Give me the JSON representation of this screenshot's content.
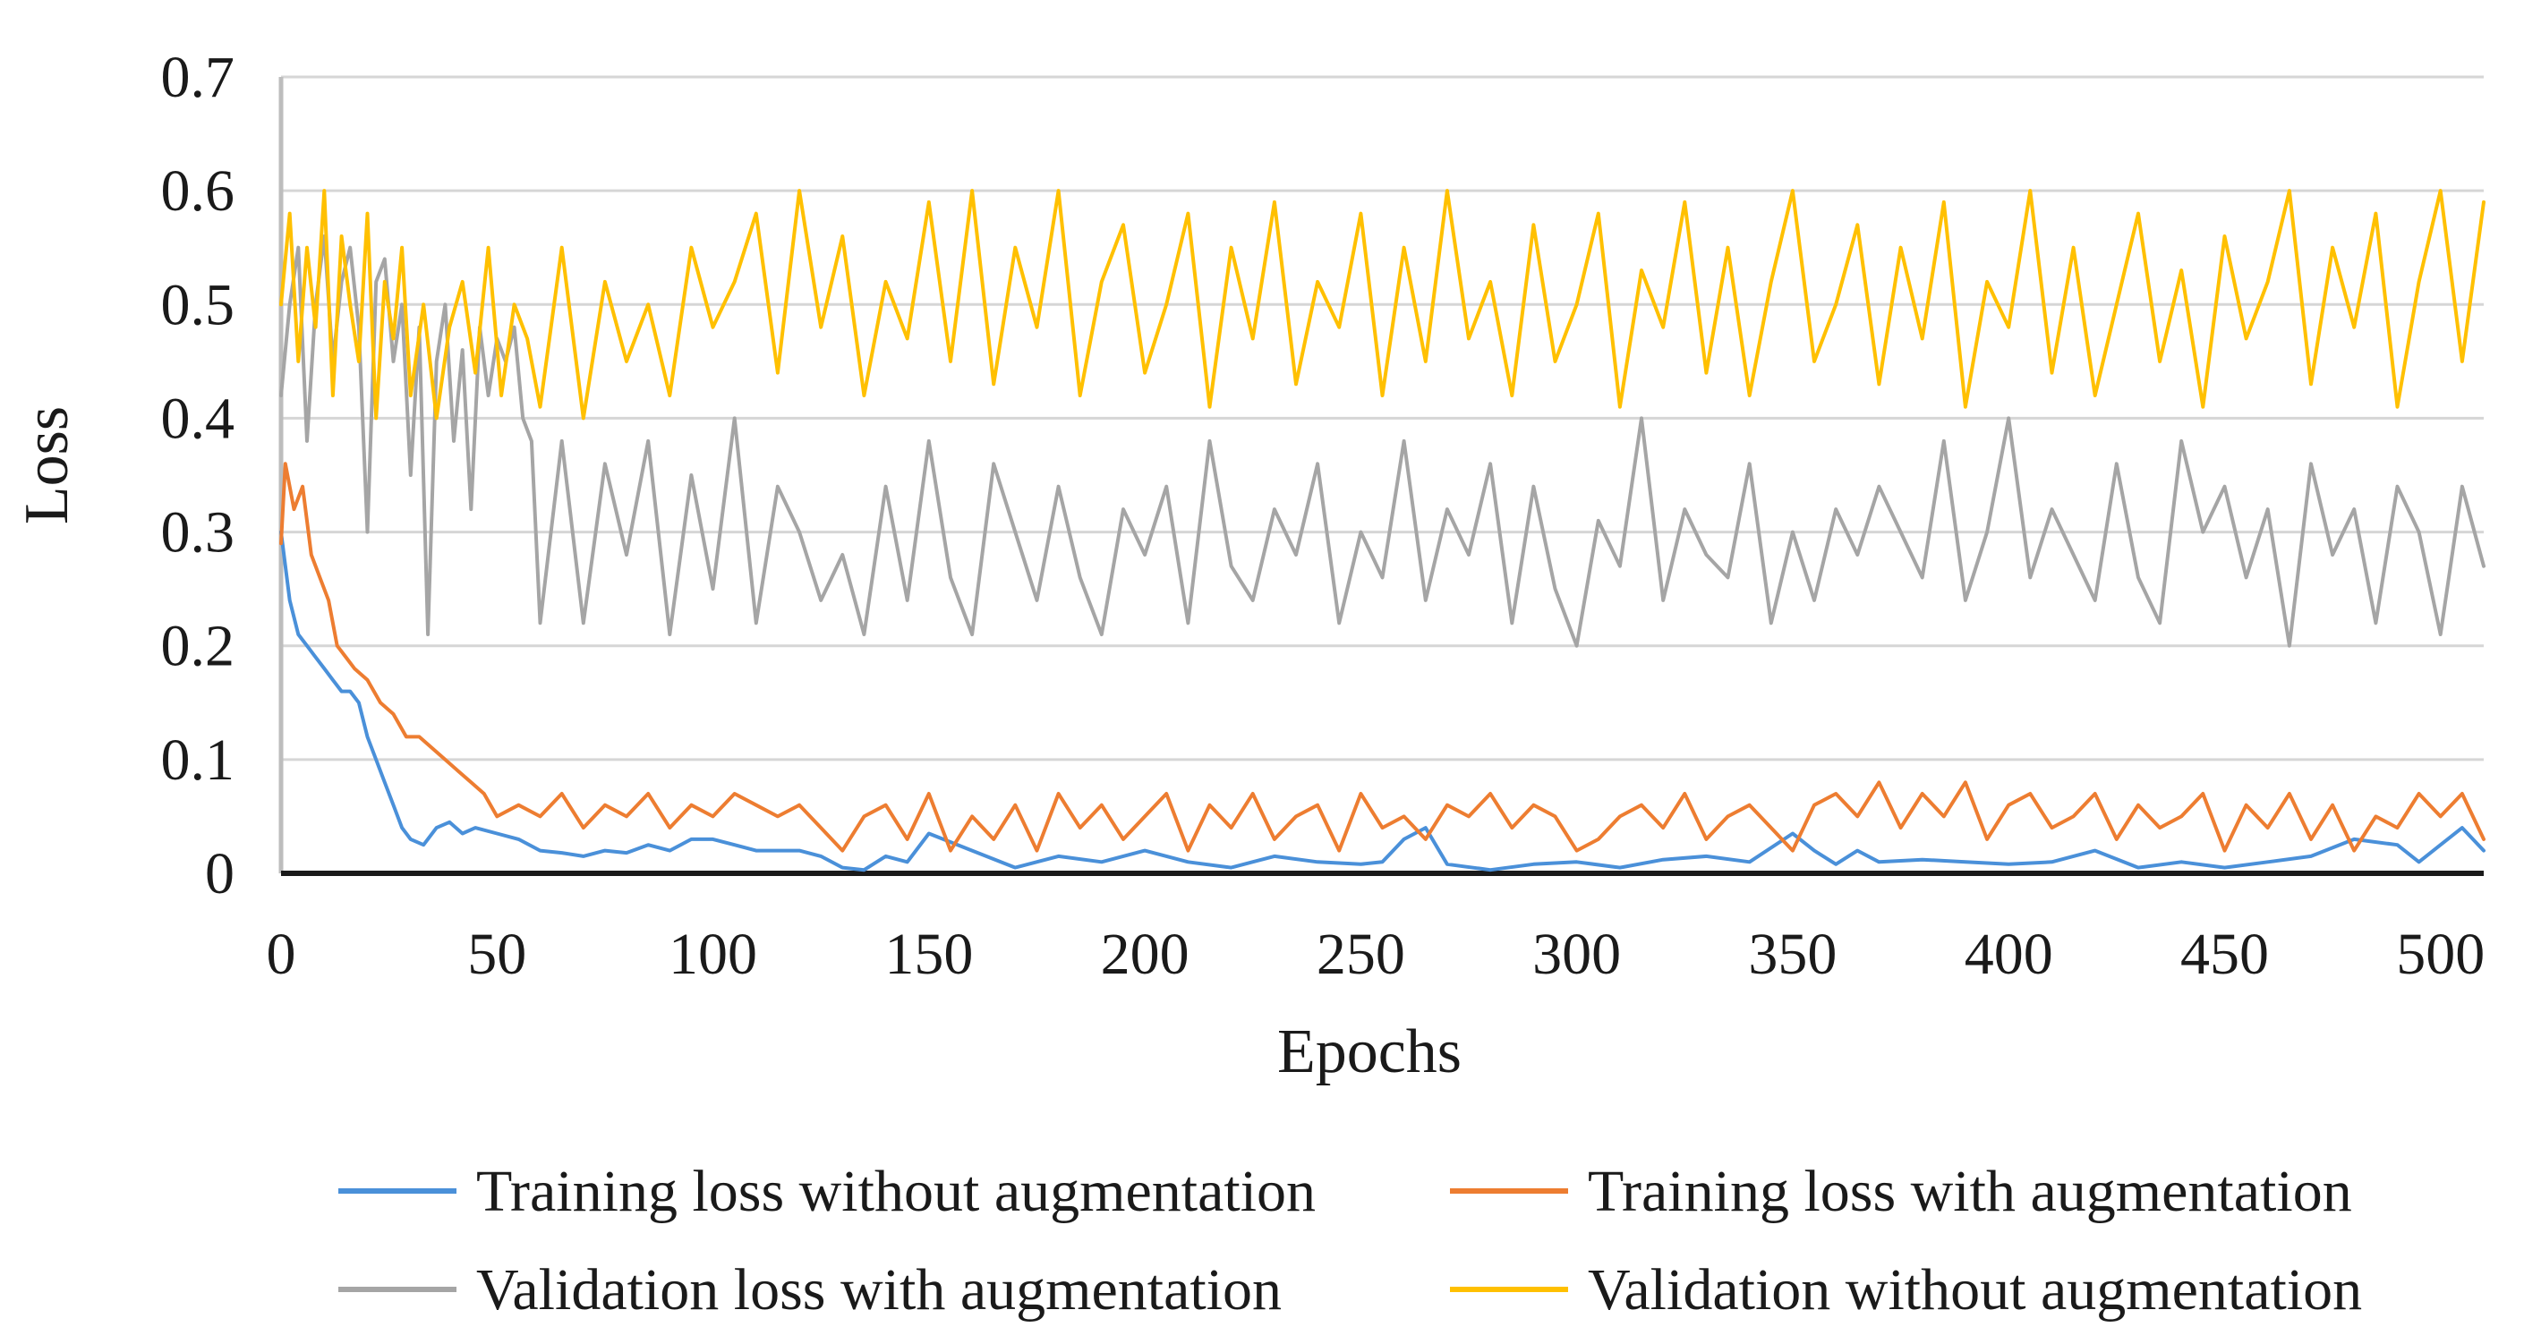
{
  "chart_data": {
    "type": "line",
    "title": "",
    "xlabel": "Epochs",
    "ylabel": "Loss",
    "xlim": [
      0,
      510
    ],
    "ylim": [
      0,
      0.7
    ],
    "x_ticks": [
      0,
      50,
      100,
      150,
      200,
      250,
      300,
      350,
      400,
      450,
      500
    ],
    "y_ticks": [
      0,
      0.1,
      0.2,
      0.3,
      0.4,
      0.5,
      0.6,
      0.7
    ],
    "y_tick_labels": [
      "0",
      "0.1",
      "0.2",
      "0.3",
      "0.4",
      "0.5",
      "0.6",
      "0.7"
    ],
    "x_tick_labels": [
      "0",
      "50",
      "100",
      "150",
      "200",
      "250",
      "300",
      "350",
      "400",
      "450",
      "500"
    ],
    "grid": true,
    "legend_position": "bottom",
    "series": [
      {
        "name": "Training loss without augmentation",
        "color": "#4a90d9",
        "x": [
          0,
          2,
          4,
          6,
          8,
          10,
          12,
          14,
          16,
          18,
          20,
          22,
          24,
          26,
          28,
          30,
          33,
          36,
          39,
          42,
          45,
          50,
          55,
          60,
          65,
          70,
          75,
          80,
          85,
          90,
          95,
          100,
          105,
          110,
          115,
          120,
          125,
          130,
          135,
          140,
          145,
          150,
          160,
          170,
          180,
          190,
          200,
          210,
          220,
          230,
          240,
          250,
          255,
          260,
          265,
          270,
          280,
          290,
          300,
          310,
          320,
          330,
          340,
          350,
          355,
          360,
          365,
          370,
          380,
          390,
          400,
          410,
          420,
          430,
          440,
          450,
          460,
          470,
          480,
          490,
          495,
          500,
          505,
          510
        ],
        "values": [
          0.3,
          0.24,
          0.21,
          0.2,
          0.19,
          0.18,
          0.17,
          0.16,
          0.16,
          0.15,
          0.12,
          0.1,
          0.08,
          0.06,
          0.04,
          0.03,
          0.025,
          0.04,
          0.045,
          0.035,
          0.04,
          0.035,
          0.03,
          0.02,
          0.018,
          0.015,
          0.02,
          0.018,
          0.025,
          0.02,
          0.03,
          0.03,
          0.025,
          0.02,
          0.02,
          0.02,
          0.015,
          0.005,
          0.003,
          0.015,
          0.01,
          0.035,
          0.02,
          0.005,
          0.015,
          0.01,
          0.02,
          0.01,
          0.005,
          0.015,
          0.01,
          0.008,
          0.01,
          0.03,
          0.04,
          0.008,
          0.003,
          0.008,
          0.01,
          0.005,
          0.012,
          0.015,
          0.01,
          0.035,
          0.02,
          0.008,
          0.02,
          0.01,
          0.012,
          0.01,
          0.008,
          0.01,
          0.02,
          0.005,
          0.01,
          0.005,
          0.01,
          0.015,
          0.03,
          0.025,
          0.01,
          0.025,
          0.04,
          0.02
        ]
      },
      {
        "name": "Training loss with augmentation",
        "color": "#ed7d31",
        "x": [
          0,
          1,
          3,
          5,
          7,
          9,
          11,
          13,
          15,
          17,
          20,
          23,
          26,
          29,
          32,
          35,
          38,
          41,
          44,
          47,
          50,
          55,
          60,
          65,
          70,
          75,
          80,
          85,
          90,
          95,
          100,
          105,
          110,
          115,
          120,
          125,
          130,
          135,
          140,
          145,
          150,
          155,
          160,
          165,
          170,
          175,
          180,
          185,
          190,
          195,
          200,
          205,
          210,
          215,
          220,
          225,
          230,
          235,
          240,
          245,
          250,
          255,
          260,
          265,
          270,
          275,
          280,
          285,
          290,
          295,
          300,
          305,
          310,
          315,
          320,
          325,
          330,
          335,
          340,
          345,
          350,
          355,
          360,
          365,
          370,
          375,
          380,
          385,
          390,
          395,
          400,
          405,
          410,
          415,
          420,
          425,
          430,
          435,
          440,
          445,
          450,
          455,
          460,
          465,
          470,
          475,
          480,
          485,
          490,
          495,
          500,
          505,
          510
        ],
        "values": [
          0.29,
          0.36,
          0.32,
          0.34,
          0.28,
          0.26,
          0.24,
          0.2,
          0.19,
          0.18,
          0.17,
          0.15,
          0.14,
          0.12,
          0.12,
          0.11,
          0.1,
          0.09,
          0.08,
          0.07,
          0.05,
          0.06,
          0.05,
          0.07,
          0.04,
          0.06,
          0.05,
          0.07,
          0.04,
          0.06,
          0.05,
          0.07,
          0.06,
          0.05,
          0.06,
          0.04,
          0.02,
          0.05,
          0.06,
          0.03,
          0.07,
          0.02,
          0.05,
          0.03,
          0.06,
          0.02,
          0.07,
          0.04,
          0.06,
          0.03,
          0.05,
          0.07,
          0.02,
          0.06,
          0.04,
          0.07,
          0.03,
          0.05,
          0.06,
          0.02,
          0.07,
          0.04,
          0.05,
          0.03,
          0.06,
          0.05,
          0.07,
          0.04,
          0.06,
          0.05,
          0.02,
          0.03,
          0.05,
          0.06,
          0.04,
          0.07,
          0.03,
          0.05,
          0.06,
          0.04,
          0.02,
          0.06,
          0.07,
          0.05,
          0.08,
          0.04,
          0.07,
          0.05,
          0.08,
          0.03,
          0.06,
          0.07,
          0.04,
          0.05,
          0.07,
          0.03,
          0.06,
          0.04,
          0.05,
          0.07,
          0.02,
          0.06,
          0.04,
          0.07,
          0.03,
          0.06,
          0.02,
          0.05,
          0.04,
          0.07,
          0.05,
          0.07,
          0.03
        ]
      },
      {
        "name": "Validation loss with augmentation",
        "color": "#a5a5a5",
        "x": [
          0,
          2,
          4,
          6,
          8,
          10,
          12,
          14,
          16,
          18,
          20,
          22,
          24,
          26,
          28,
          30,
          32,
          34,
          36,
          38,
          40,
          42,
          44,
          46,
          48,
          50,
          52,
          54,
          56,
          58,
          60,
          65,
          70,
          75,
          80,
          85,
          90,
          95,
          100,
          105,
          110,
          115,
          120,
          125,
          130,
          135,
          140,
          145,
          150,
          155,
          160,
          165,
          170,
          175,
          180,
          185,
          190,
          195,
          200,
          205,
          210,
          215,
          220,
          225,
          230,
          235,
          240,
          245,
          250,
          255,
          260,
          265,
          270,
          275,
          280,
          285,
          290,
          295,
          300,
          305,
          310,
          315,
          320,
          325,
          330,
          335,
          340,
          345,
          350,
          355,
          360,
          365,
          370,
          375,
          380,
          385,
          390,
          395,
          400,
          405,
          410,
          415,
          420,
          425,
          430,
          435,
          440,
          445,
          450,
          455,
          460,
          465,
          470,
          475,
          480,
          485,
          490,
          495,
          500,
          505,
          510
        ],
        "values": [
          0.42,
          0.5,
          0.55,
          0.38,
          0.5,
          0.56,
          0.45,
          0.52,
          0.55,
          0.48,
          0.3,
          0.52,
          0.54,
          0.45,
          0.5,
          0.35,
          0.48,
          0.21,
          0.45,
          0.5,
          0.38,
          0.46,
          0.32,
          0.48,
          0.42,
          0.47,
          0.45,
          0.48,
          0.4,
          0.38,
          0.22,
          0.38,
          0.22,
          0.36,
          0.28,
          0.38,
          0.21,
          0.35,
          0.25,
          0.4,
          0.22,
          0.34,
          0.3,
          0.24,
          0.28,
          0.21,
          0.34,
          0.24,
          0.38,
          0.26,
          0.21,
          0.36,
          0.3,
          0.24,
          0.34,
          0.26,
          0.21,
          0.32,
          0.28,
          0.34,
          0.22,
          0.38,
          0.27,
          0.24,
          0.32,
          0.28,
          0.36,
          0.22,
          0.3,
          0.26,
          0.38,
          0.24,
          0.32,
          0.28,
          0.36,
          0.22,
          0.34,
          0.25,
          0.2,
          0.31,
          0.27,
          0.4,
          0.24,
          0.32,
          0.28,
          0.26,
          0.36,
          0.22,
          0.3,
          0.24,
          0.32,
          0.28,
          0.34,
          0.3,
          0.26,
          0.38,
          0.24,
          0.3,
          0.4,
          0.26,
          0.32,
          0.28,
          0.24,
          0.36,
          0.26,
          0.22,
          0.38,
          0.3,
          0.34,
          0.26,
          0.32,
          0.2,
          0.36,
          0.28,
          0.32,
          0.22,
          0.34,
          0.3,
          0.21,
          0.34,
          0.27
        ]
      },
      {
        "name": "Validation without augmentation",
        "color": "#ffc000",
        "x": [
          0,
          2,
          4,
          6,
          8,
          10,
          12,
          14,
          16,
          18,
          20,
          22,
          24,
          26,
          28,
          30,
          33,
          36,
          39,
          42,
          45,
          48,
          51,
          54,
          57,
          60,
          65,
          70,
          75,
          80,
          85,
          90,
          95,
          100,
          105,
          110,
          115,
          120,
          125,
          130,
          135,
          140,
          145,
          150,
          155,
          160,
          165,
          170,
          175,
          180,
          185,
          190,
          195,
          200,
          205,
          210,
          215,
          220,
          225,
          230,
          235,
          240,
          245,
          250,
          255,
          260,
          265,
          270,
          275,
          280,
          285,
          290,
          295,
          300,
          305,
          310,
          315,
          320,
          325,
          330,
          335,
          340,
          345,
          350,
          355,
          360,
          365,
          370,
          375,
          380,
          385,
          390,
          395,
          400,
          405,
          410,
          415,
          420,
          425,
          430,
          435,
          440,
          445,
          450,
          455,
          460,
          465,
          470,
          475,
          480,
          485,
          490,
          495,
          500,
          505,
          510
        ],
        "values": [
          0.5,
          0.58,
          0.45,
          0.55,
          0.48,
          0.6,
          0.42,
          0.56,
          0.5,
          0.45,
          0.58,
          0.4,
          0.52,
          0.47,
          0.55,
          0.42,
          0.5,
          0.4,
          0.48,
          0.52,
          0.44,
          0.55,
          0.42,
          0.5,
          0.47,
          0.41,
          0.55,
          0.4,
          0.52,
          0.45,
          0.5,
          0.42,
          0.55,
          0.48,
          0.52,
          0.58,
          0.44,
          0.6,
          0.48,
          0.56,
          0.42,
          0.52,
          0.47,
          0.59,
          0.45,
          0.6,
          0.43,
          0.55,
          0.48,
          0.6,
          0.42,
          0.52,
          0.57,
          0.44,
          0.5,
          0.58,
          0.41,
          0.55,
          0.47,
          0.59,
          0.43,
          0.52,
          0.48,
          0.58,
          0.42,
          0.55,
          0.45,
          0.6,
          0.47,
          0.52,
          0.42,
          0.57,
          0.45,
          0.5,
          0.58,
          0.41,
          0.53,
          0.48,
          0.59,
          0.44,
          0.55,
          0.42,
          0.52,
          0.6,
          0.45,
          0.5,
          0.57,
          0.43,
          0.55,
          0.47,
          0.59,
          0.41,
          0.52,
          0.48,
          0.6,
          0.44,
          0.55,
          0.42,
          0.5,
          0.58,
          0.45,
          0.53,
          0.41,
          0.56,
          0.47,
          0.52,
          0.6,
          0.43,
          0.55,
          0.48,
          0.58,
          0.41,
          0.52,
          0.6,
          0.45,
          0.59
        ]
      }
    ]
  }
}
